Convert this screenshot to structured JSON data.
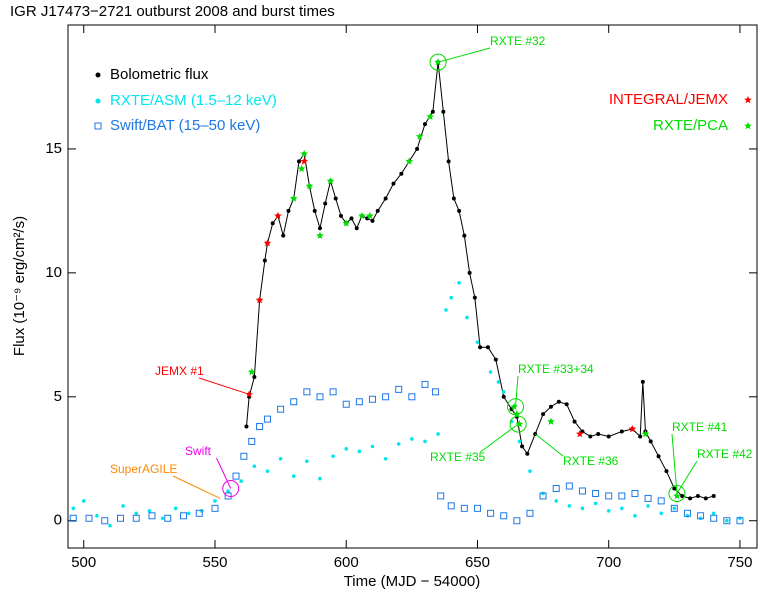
{
  "chart_data": {
    "type": "scatter",
    "title": "IGR J17473−2721 outburst 2008 and burst times",
    "x_label": "Time (MJD − 54000)",
    "y_label": "Flux (10⁻⁹ erg/cm²/s)",
    "xlim": [
      494,
      756.5
    ],
    "ylim": [
      -1.1,
      20
    ],
    "xticks": [
      500,
      550,
      600,
      650,
      700,
      750
    ],
    "yticks": [
      0,
      5,
      10,
      15
    ],
    "series": [
      {
        "name": "Bolometric flux",
        "color": "#000000",
        "marker": "dot-line",
        "x": [
          562,
          563,
          565,
          567,
          569,
          570,
          572,
          574,
          576,
          578,
          580,
          582,
          584,
          586,
          588,
          590,
          592,
          594,
          596,
          598,
          600,
          602,
          604,
          606,
          608,
          610,
          612,
          615,
          618,
          621,
          624,
          627,
          630,
          633,
          635,
          637,
          639,
          641,
          643,
          645,
          647,
          649,
          651,
          654,
          657,
          660,
          663,
          665,
          667,
          669,
          672,
          675,
          678,
          681,
          684,
          687,
          690,
          693,
          696,
          700,
          705,
          709,
          712,
          713,
          714,
          716,
          719,
          722,
          725,
          728,
          731,
          734,
          737,
          740
        ],
        "values": [
          3.8,
          5.0,
          5.8,
          8.9,
          10.5,
          11.2,
          12.0,
          12.3,
          11.5,
          12.5,
          13.0,
          14.5,
          14.8,
          13.5,
          12.5,
          11.8,
          12.8,
          13.7,
          13.0,
          12.3,
          12.0,
          12.2,
          11.8,
          12.3,
          12.2,
          12.1,
          12.5,
          13.0,
          13.6,
          14.0,
          14.5,
          15.0,
          16.0,
          16.5,
          18.5,
          16.5,
          14.5,
          13.0,
          12.5,
          11.5,
          10.0,
          9.0,
          7.0,
          7.0,
          6.5,
          5.0,
          4.5,
          4.2,
          3.0,
          2.7,
          3.5,
          4.3,
          4.6,
          4.8,
          4.7,
          4.0,
          3.6,
          3.4,
          3.5,
          3.4,
          3.6,
          3.7,
          3.4,
          5.6,
          3.6,
          3.2,
          2.6,
          2.0,
          1.3,
          1.0,
          0.9,
          1.0,
          0.9,
          1.0
        ]
      },
      {
        "name": "RXTE/ASM  (1.5–12 keV)",
        "color": "#00e5ee",
        "marker": "dot",
        "x": [
          496,
          500,
          505,
          510,
          515,
          520,
          525,
          530,
          535,
          540,
          545,
          550,
          555,
          560,
          565,
          570,
          575,
          580,
          585,
          590,
          595,
          600,
          605,
          610,
          615,
          620,
          625,
          630,
          635,
          638,
          640,
          643,
          646,
          650,
          655,
          658,
          660,
          663,
          666,
          670,
          675,
          680,
          685,
          690,
          695,
          700,
          705,
          710,
          715,
          720,
          725,
          730,
          735,
          740,
          745,
          750
        ],
        "values": [
          0.5,
          0.8,
          0.2,
          -0.2,
          0.6,
          0.3,
          0.4,
          0.1,
          0.5,
          0.3,
          0.4,
          0.8,
          1.2,
          1.6,
          2.2,
          2.0,
          2.5,
          1.8,
          2.4,
          1.7,
          2.6,
          2.9,
          2.8,
          3.0,
          2.5,
          3.1,
          3.3,
          3.2,
          3.5,
          8.5,
          9.0,
          9.6,
          8.2,
          7.2,
          6.0,
          5.6,
          5.2,
          4.0,
          3.2,
          2.0,
          1.1,
          0.8,
          0.6,
          0.5,
          0.7,
          0.4,
          0.5,
          0.2,
          0.6,
          0.3,
          0.5,
          0.2,
          0.1,
          0.3,
          0.0,
          0.1
        ]
      },
      {
        "name": "Swift/BAT (15–50 keV)",
        "color": "#1e78e6",
        "marker": "square",
        "x": [
          496,
          502,
          508,
          514,
          520,
          526,
          532,
          538,
          544,
          550,
          555,
          558,
          561,
          564,
          567,
          570,
          575,
          580,
          585,
          590,
          595,
          600,
          605,
          610,
          615,
          620,
          625,
          630,
          634,
          636,
          640,
          645,
          650,
          655,
          660,
          665,
          670,
          675,
          680,
          685,
          690,
          695,
          700,
          705,
          710,
          715,
          720,
          725,
          730,
          735,
          740,
          745,
          750
        ],
        "values": [
          0.1,
          0.1,
          0.0,
          0.1,
          0.1,
          0.2,
          0.1,
          0.2,
          0.3,
          0.5,
          1.0,
          1.8,
          2.6,
          3.2,
          3.8,
          4.1,
          4.5,
          4.8,
          5.2,
          5.0,
          5.2,
          4.7,
          4.8,
          4.9,
          5.0,
          5.3,
          5.0,
          5.5,
          5.2,
          1.0,
          0.6,
          0.5,
          0.5,
          0.3,
          0.2,
          0.0,
          0.3,
          1.0,
          1.3,
          1.4,
          1.2,
          1.1,
          1.0,
          1.0,
          1.1,
          0.9,
          0.8,
          0.5,
          0.3,
          0.2,
          0.1,
          0.0,
          0.0
        ]
      },
      {
        "name": "INTEGRAL/JEMX",
        "color": "#ff0000",
        "marker": "star",
        "x": [
          563,
          567,
          570,
          574,
          584,
          689,
          709
        ],
        "values": [
          5.1,
          8.9,
          11.2,
          12.3,
          14.5,
          3.5,
          3.7
        ]
      },
      {
        "name": "RXTE/PCA",
        "color": "#00dd00",
        "marker": "star",
        "x": [
          564,
          580,
          583,
          584,
          586,
          590,
          594,
          600,
          606,
          609,
          624,
          628,
          632,
          635,
          664,
          665,
          666,
          678,
          714,
          726
        ],
        "values": [
          6.0,
          13.0,
          14.2,
          14.8,
          13.5,
          11.5,
          13.7,
          12.0,
          12.3,
          12.3,
          14.5,
          15.5,
          16.3,
          18.5,
          4.6,
          4.3,
          3.9,
          4.0,
          3.5,
          1.0
        ]
      }
    ],
    "annotations": [
      {
        "text": "RXTE #32",
        "x": 635,
        "y": 18.5,
        "color": "#00dd00"
      },
      {
        "text": "JEMX #1",
        "x": 563,
        "y": 5.1,
        "color": "#ff0000"
      },
      {
        "text": "Swift",
        "x": 556,
        "y": 1.3,
        "color": "#ee00ee"
      },
      {
        "text": "SuperAGILE",
        "x": 552,
        "y": 0.9,
        "color": "#ff8800"
      },
      {
        "text": "RXTE #33+34",
        "x": 664.5,
        "y": 4.6,
        "color": "#00dd00"
      },
      {
        "text": "RXTE #35",
        "x": 665.5,
        "y": 3.9,
        "color": "#00dd00"
      },
      {
        "text": "RXTE #36",
        "x": 672,
        "y": 3.5,
        "color": "#00dd00"
      },
      {
        "text": "RXTE #41",
        "x": 726,
        "y": 1.1,
        "color": "#00dd00"
      },
      {
        "text": "RXTE #42",
        "x": 726,
        "y": 1.1,
        "color": "#00dd00"
      }
    ]
  }
}
